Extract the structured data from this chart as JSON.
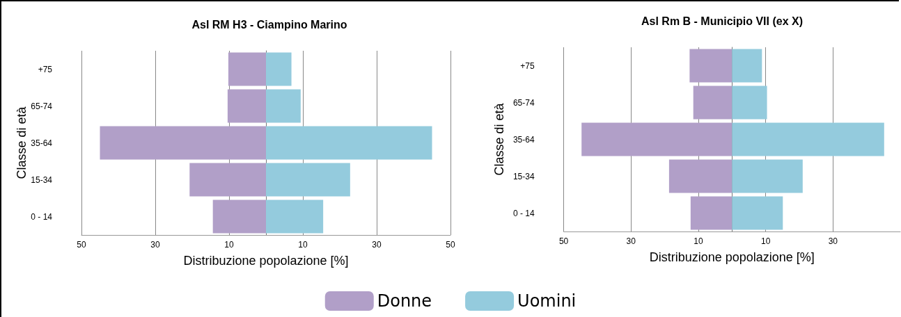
{
  "chart_data": [
    {
      "type": "bar",
      "orientation": "horizontal",
      "title": "Asl RM H3 - Ciampino Marino",
      "xlabel": "Distribuzione popolazione [%]",
      "ylabel": "Classe di età",
      "categories": [
        "+75",
        "65-74",
        "35-64",
        "15-34",
        "0 - 14"
      ],
      "series": [
        {
          "name": "Donne",
          "color": "#b19fc8",
          "values": [
            -10.2,
            -10.4,
            -45.0,
            -20.7,
            -14.4
          ]
        },
        {
          "name": "Uomini",
          "color": "#94cbdd",
          "values": [
            6.9,
            9.4,
            45.0,
            22.8,
            15.5
          ]
        }
      ],
      "stacked": true,
      "xlim": [
        -50,
        50
      ],
      "xticks": [
        {
          "value": -50,
          "label": "50"
        },
        {
          "value": -30,
          "label": "30"
        },
        {
          "value": -10,
          "label": "10"
        },
        10,
        30,
        50
      ],
      "grid": "x",
      "legend": "bottom"
    },
    {
      "type": "bar",
      "orientation": "horizontal",
      "title": "Asl Rm B - Municipio VII (ex X)",
      "xlabel": "Distribuzione popolazione [%]",
      "ylabel": "Classe di età",
      "categories": [
        "+75",
        "65-74",
        "35-64",
        "15-34",
        "0 - 14"
      ],
      "series": [
        {
          "color": "#b19fc8",
          "values": [
            -12.6,
            -11.5,
            -44.7,
            -18.7,
            -12.3
          ]
        },
        {
          "color": "#94cbdd",
          "values": [
            8.9,
            10.4,
            45.2,
            21.0,
            15.1
          ]
        }
      ],
      "stacked": true,
      "xlim": [
        -50,
        50
      ],
      "xticks": [
        {
          "value": -50,
          "label": "50"
        },
        {
          "value": -30,
          "label": "30"
        },
        {
          "value": -10,
          "label": "10"
        },
        10,
        30
      ],
      "grid": "x"
    }
  ]
}
